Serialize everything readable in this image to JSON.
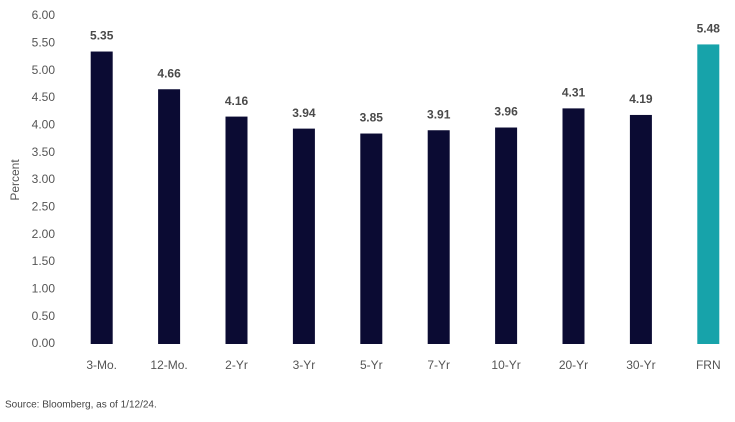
{
  "chart_data": {
    "type": "bar",
    "y_label": "Percent",
    "source": "Source: Bloomberg, as of 1/12/24.",
    "categories": [
      "3-Mo.",
      "12-Mo.",
      "2-Yr",
      "3-Yr",
      "5-Yr",
      "7-Yr",
      "10-Yr",
      "20-Yr",
      "30-Yr",
      "FRN"
    ],
    "values": [
      5.35,
      4.66,
      4.16,
      3.94,
      3.85,
      3.91,
      3.96,
      4.31,
      4.19,
      5.48
    ],
    "colors": [
      "#0b0b33",
      "#0b0b33",
      "#0b0b33",
      "#0b0b33",
      "#0b0b33",
      "#0b0b33",
      "#0b0b33",
      "#0b0b33",
      "#0b0b33",
      "#17a3aa"
    ],
    "ylim": [
      0,
      6
    ],
    "yticks": [
      {
        "value": 0,
        "label": "0.00"
      },
      {
        "value": 0.5,
        "label": "0.50"
      },
      {
        "value": 1,
        "label": "1.00"
      },
      {
        "value": 1.5,
        "label": "1.50"
      },
      {
        "value": 2,
        "label": "2.00"
      },
      {
        "value": 2.5,
        "label": "2.50"
      },
      {
        "value": 3,
        "label": "3.00"
      },
      {
        "value": 3.5,
        "label": "3.50"
      },
      {
        "value": 4,
        "label": "4.00"
      },
      {
        "value": 4.5,
        "label": "4.50"
      },
      {
        "value": 5,
        "label": "5.00"
      },
      {
        "value": 5.5,
        "label": "5.50"
      },
      {
        "value": 6,
        "label": "6.00"
      }
    ],
    "grid": false
  }
}
